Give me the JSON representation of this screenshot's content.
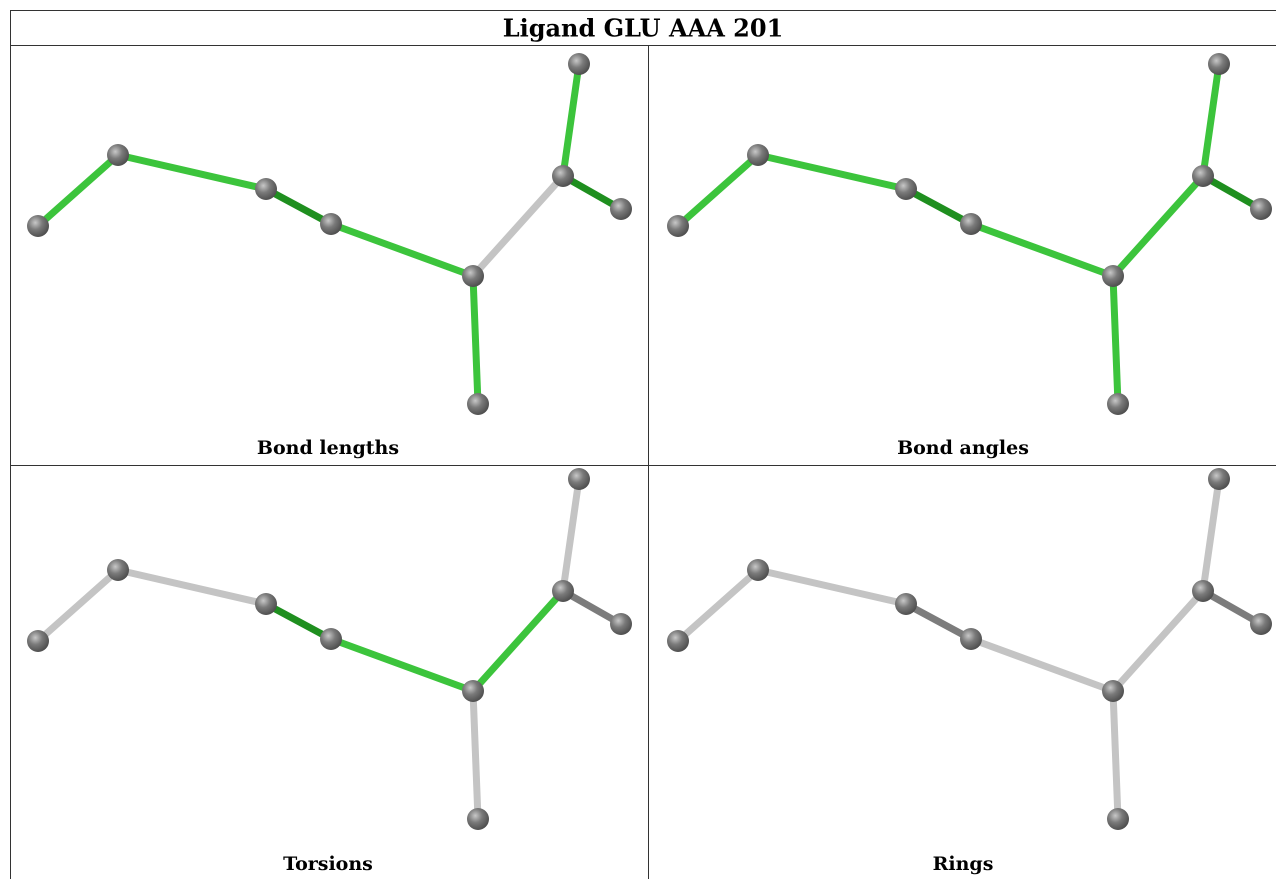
{
  "title": "Ligand GLU AAA 201",
  "panels": [
    {
      "caption": "Bond lengths"
    },
    {
      "caption": "Bond angles"
    },
    {
      "caption": "Torsions"
    },
    {
      "caption": "Rings"
    }
  ]
}
